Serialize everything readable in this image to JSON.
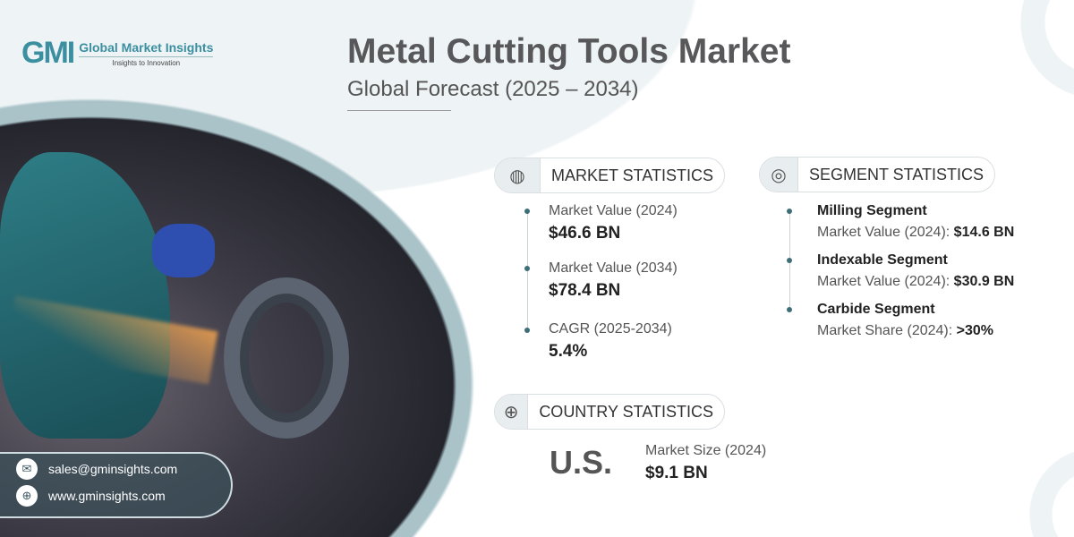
{
  "brand": {
    "logo_mark": "GMI",
    "name": "Global Market Insights",
    "tagline": "Insights to Innovation"
  },
  "header": {
    "title": "Metal Cutting Tools Market",
    "subtitle": "Global Forecast (2025 – 2034)"
  },
  "market_statistics": {
    "heading": "MARKET STATISTICS",
    "icon": "chart-globe-icon",
    "items": [
      {
        "label": "Market Value (2024)",
        "value": "$46.6 BN"
      },
      {
        "label": "Market Value (2034)",
        "value": "$78.4 BN"
      },
      {
        "label": "CAGR (2025-2034)",
        "value": "5.4%"
      }
    ]
  },
  "segment_statistics": {
    "heading": "SEGMENT STATISTICS",
    "icon": "target-chart-icon",
    "items": [
      {
        "name": "Milling Segment",
        "label": "Market Value (2024):",
        "value": "$14.6 BN"
      },
      {
        "name": "Indexable Segment",
        "label": "Market Value (2024):",
        "value": "$30.9 BN"
      },
      {
        "name": "Carbide Segment",
        "label": "Market Share (2024):",
        "value": ">30%"
      }
    ]
  },
  "country_statistics": {
    "heading": "COUNTRY STATISTICS",
    "icon": "globe-icon",
    "country": "U.S.",
    "label": "Market Size (2024)",
    "value": "$9.1 BN"
  },
  "contact": {
    "email": "sales@gminsights.com",
    "website": "www.gminsights.com"
  },
  "colors": {
    "accent": "#3b8fa0",
    "ring": "#a9c3c9"
  }
}
